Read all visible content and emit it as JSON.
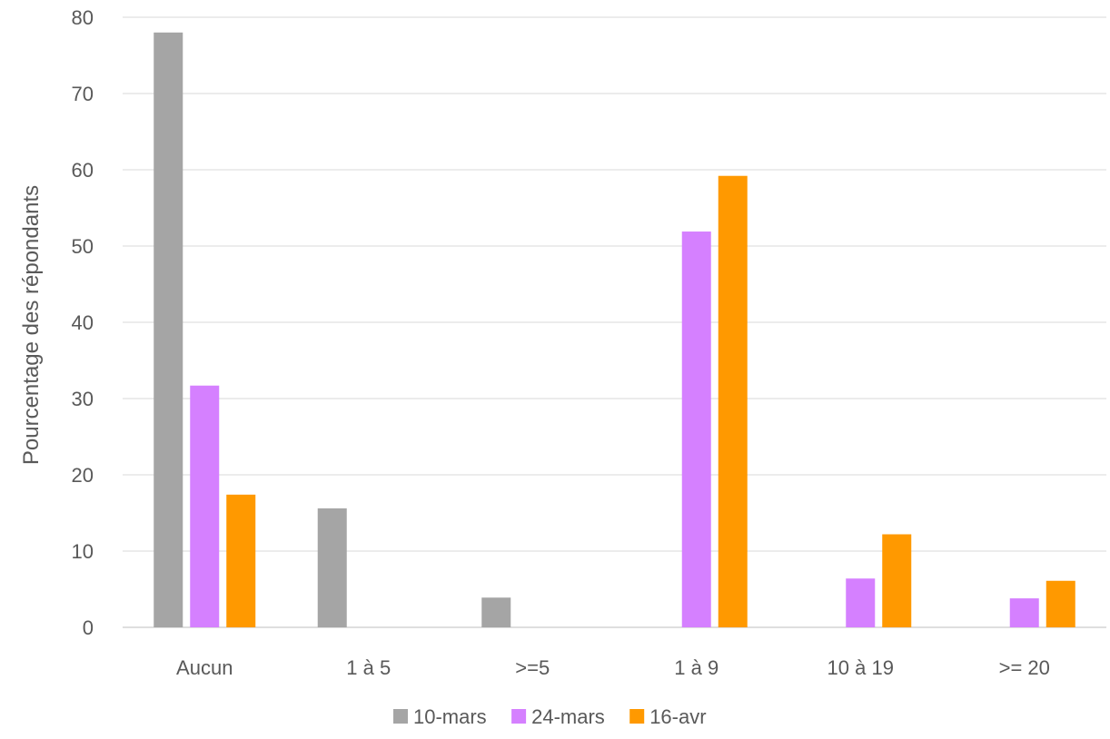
{
  "chart_data": {
    "type": "bar",
    "title": "",
    "xlabel": "",
    "ylabel": "Pourcentage des répondants",
    "categories": [
      "Aucun",
      "1 à 5",
      ">=5",
      "1 à 9",
      "10 à 19",
      ">= 20"
    ],
    "series": [
      {
        "name": "10-mars",
        "color": "#a5a5a5",
        "values": [
          78,
          15.6,
          3.9,
          null,
          null,
          null
        ]
      },
      {
        "name": "24-mars",
        "color": "#d580ff",
        "values": [
          31.7,
          null,
          null,
          51.9,
          6.4,
          3.8
        ]
      },
      {
        "name": "16-avr",
        "color": "#ff9900",
        "values": [
          17.4,
          null,
          null,
          59.2,
          12.2,
          6.1
        ]
      }
    ],
    "ylim": [
      0,
      80
    ],
    "yticks": [
      0,
      10,
      20,
      30,
      40,
      50,
      60,
      70,
      80
    ],
    "grid": true,
    "legend_position": "bottom"
  }
}
